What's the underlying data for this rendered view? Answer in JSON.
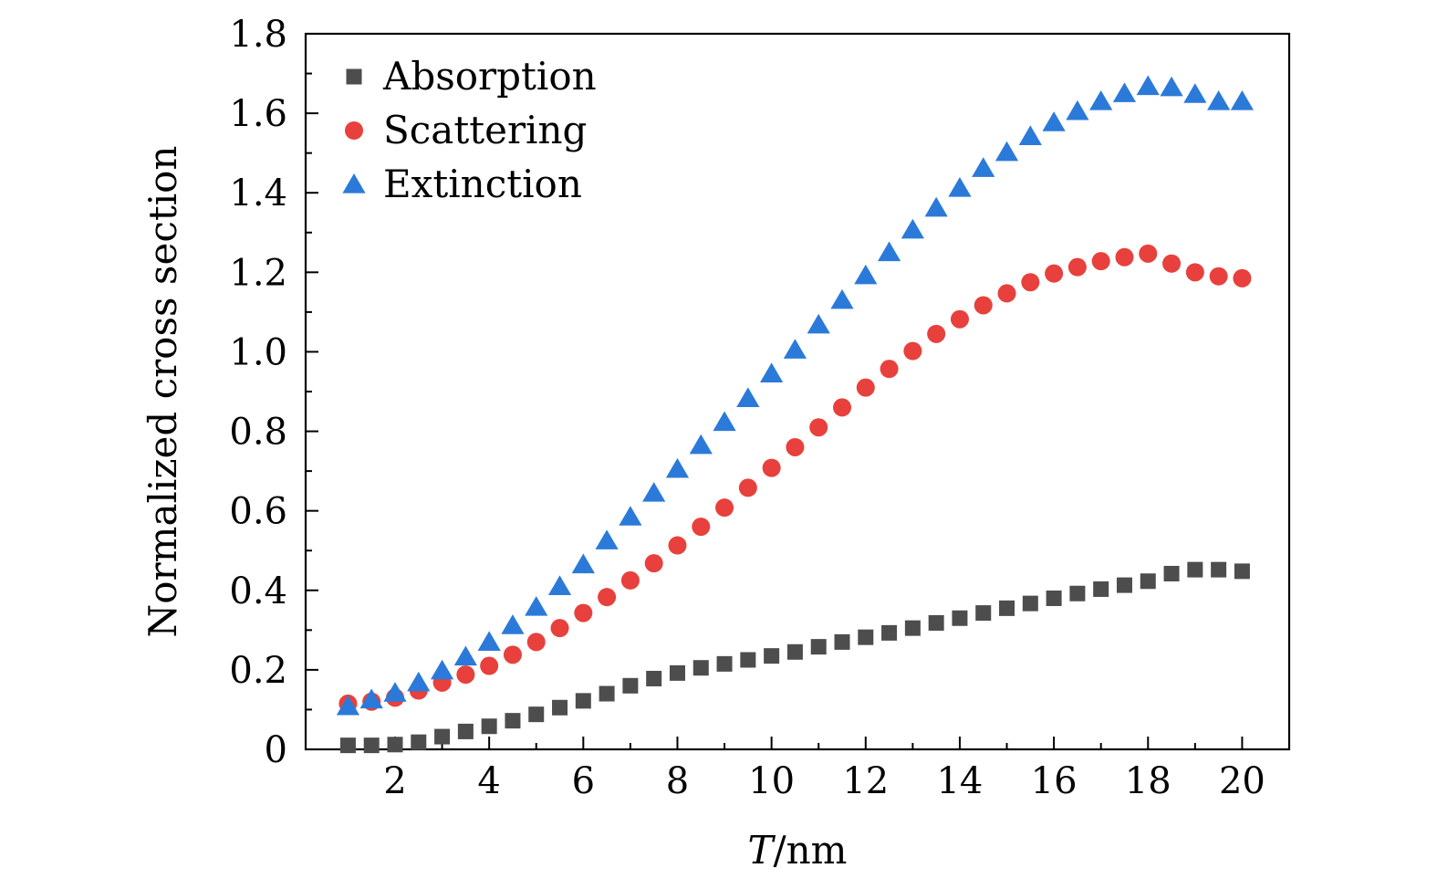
{
  "chart_data": {
    "type": "scatter",
    "title": "",
    "xlabel_var": "T",
    "xlabel_unit": "/nm",
    "ylabel": "Normalized cross section",
    "xlim": [
      0.1,
      21
    ],
    "ylim": [
      0,
      1.8
    ],
    "x_ticks": [
      2,
      4,
      6,
      8,
      10,
      12,
      14,
      16,
      18,
      20
    ],
    "x_tick_labels": [
      "2",
      "4",
      "6",
      "8",
      "10",
      "12",
      "14",
      "16",
      "18",
      "20"
    ],
    "y_ticks": [
      0,
      0.2,
      0.4,
      0.6,
      0.8,
      1.0,
      1.2,
      1.4,
      1.6,
      1.8
    ],
    "y_tick_labels": [
      "0",
      "0.2",
      "0.4",
      "0.6",
      "0.8",
      "1.0",
      "1.2",
      "1.4",
      "1.6",
      "1.8"
    ],
    "legend_position": "top-left",
    "x": [
      1,
      1.5,
      2,
      2.5,
      3,
      3.5,
      4,
      4.5,
      5,
      5.5,
      6,
      6.5,
      7,
      7.5,
      8,
      8.5,
      9,
      9.5,
      10,
      10.5,
      11,
      11.5,
      12,
      12.5,
      13,
      13.5,
      14,
      14.5,
      15,
      15.5,
      16,
      16.5,
      17,
      17.5,
      18,
      18.5,
      19,
      19.5,
      20
    ],
    "series": [
      {
        "name": "Absorption",
        "marker": "square",
        "color": "#4d4d4d",
        "values": [
          0.01,
          0.01,
          0.012,
          0.018,
          0.032,
          0.045,
          0.058,
          0.072,
          0.088,
          0.105,
          0.122,
          0.14,
          0.16,
          0.178,
          0.192,
          0.205,
          0.215,
          0.225,
          0.235,
          0.245,
          0.258,
          0.27,
          0.282,
          0.293,
          0.305,
          0.318,
          0.33,
          0.343,
          0.355,
          0.367,
          0.38,
          0.392,
          0.403,
          0.413,
          0.423,
          0.442,
          0.452,
          0.452,
          0.448
        ]
      },
      {
        "name": "Scattering",
        "marker": "circle",
        "color": "#e8403c",
        "values": [
          0.115,
          0.12,
          0.13,
          0.148,
          0.168,
          0.188,
          0.21,
          0.238,
          0.27,
          0.305,
          0.343,
          0.383,
          0.425,
          0.468,
          0.513,
          0.56,
          0.608,
          0.658,
          0.708,
          0.76,
          0.81,
          0.86,
          0.91,
          0.957,
          1.002,
          1.045,
          1.082,
          1.117,
          1.147,
          1.175,
          1.197,
          1.213,
          1.228,
          1.238,
          1.247,
          1.222,
          1.2,
          1.19,
          1.185
        ]
      },
      {
        "name": "Extinction",
        "marker": "triangle",
        "color": "#2b7ad9",
        "values": [
          0.108,
          0.125,
          0.142,
          0.168,
          0.198,
          0.233,
          0.27,
          0.312,
          0.358,
          0.41,
          0.465,
          0.525,
          0.585,
          0.645,
          0.705,
          0.765,
          0.823,
          0.883,
          0.945,
          1.005,
          1.068,
          1.13,
          1.192,
          1.25,
          1.307,
          1.362,
          1.412,
          1.462,
          1.502,
          1.542,
          1.577,
          1.605,
          1.63,
          1.65,
          1.668,
          1.665,
          1.648,
          1.63,
          1.63
        ]
      }
    ]
  }
}
